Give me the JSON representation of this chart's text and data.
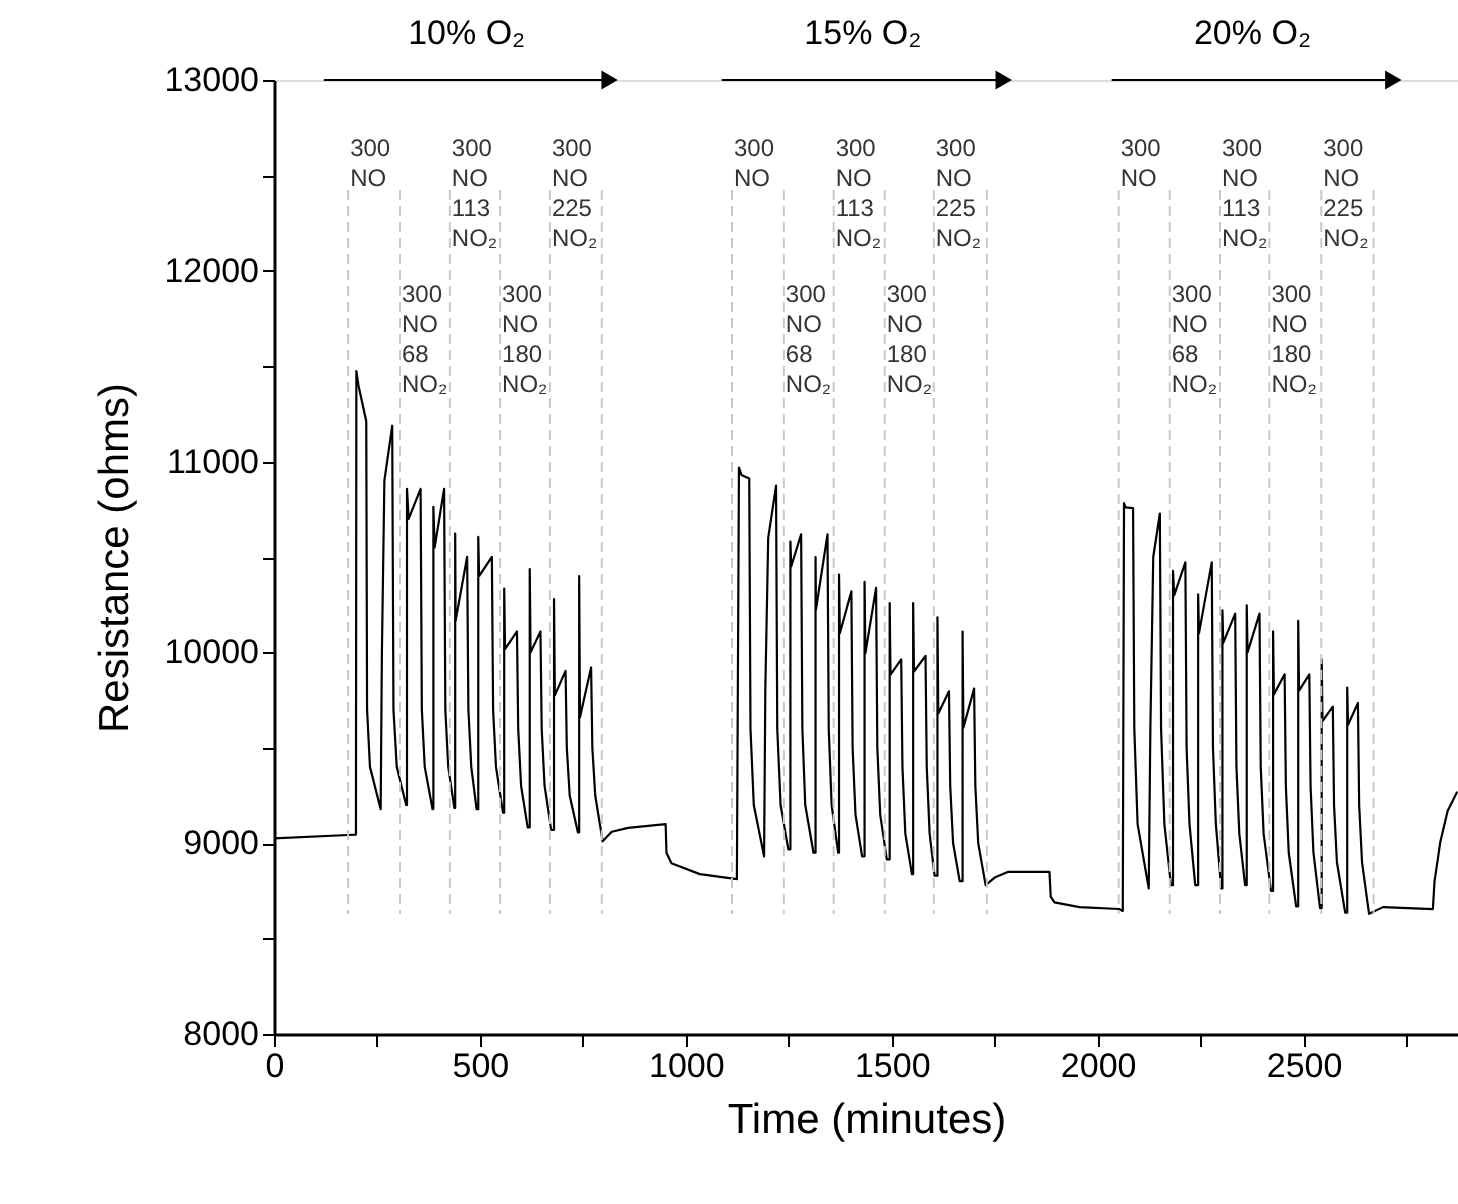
{
  "chart_data": {
    "type": "line",
    "xlabel": "Time (minutes)",
    "ylabel": "Resistance (ohms)",
    "xlim": [
      0,
      2875
    ],
    "ylim": [
      8000,
      13000
    ],
    "xticks": [
      0,
      {
        "value": 250,
        "label": null
      },
      500,
      {
        "value": 750,
        "label": null
      },
      1000,
      {
        "value": 1250,
        "label": null
      },
      1500,
      {
        "value": 1750,
        "label": null
      },
      2000,
      {
        "value": 2250,
        "label": null
      },
      2500,
      {
        "value": 2750,
        "label": null
      }
    ],
    "yticks": [
      8000,
      {
        "value": 8500,
        "label": null
      },
      9000,
      {
        "value": 9500,
        "label": null
      },
      10000,
      {
        "value": 10500,
        "label": null
      },
      11000,
      {
        "value": 11500,
        "label": null
      },
      12000,
      {
        "value": 12500,
        "label": null
      },
      13000
    ],
    "grid": false,
    "line_style": "solid",
    "series": [
      {
        "color": "#000000",
        "x": [
          0,
          180,
          199,
          200,
          205,
          224,
          226,
          233,
          259,
          262,
          268,
          287,
          290,
          298,
          321,
          323,
          323,
          327,
          356,
          359,
          366,
          385,
          387,
          387,
          390,
          413,
          416,
          423,
          438,
          440,
          440,
          441,
          469,
          472,
          479,
          492,
          496,
          496,
          498,
          529,
          532,
          539,
          556,
          559,
          559,
          561,
          590,
          593,
          600,
          616,
          621,
          621,
          623,
          647,
          650,
          657,
          673,
          680,
          680,
          682,
          708,
          711,
          718,
          738,
          741,
          741,
          743,
          770,
          773,
          780,
          798,
          820,
          860,
          951,
          953,
          965,
          1034,
          1124,
          1129,
          1135,
          1154,
          1157,
          1165,
          1190,
          1193,
          1200,
          1219,
          1222,
          1230,
          1249,
          1254,
          1254,
          1256,
          1280,
          1283,
          1290,
          1310,
          1315,
          1315,
          1316,
          1344,
          1347,
          1354,
          1370,
          1372,
          1372,
          1374,
          1402,
          1405,
          1412,
          1428,
          1434,
          1434,
          1436,
          1462,
          1465,
          1472,
          1488,
          1495,
          1495,
          1497,
          1523,
          1526,
          1533,
          1549,
          1552,
          1552,
          1554,
          1582,
          1585,
          1592,
          1604,
          1611,
          1611,
          1613,
          1639,
          1642,
          1649,
          1665,
          1672,
          1672,
          1674,
          1700,
          1703,
          1710,
          1728,
          1750,
          1783,
          1883,
          1886,
          1895,
          1956,
          2052,
          2061,
          2064,
          2068,
          2086,
          2089,
          2097,
          2124,
          2128,
          2135,
          2151,
          2154,
          2162,
          2178,
          2183,
          2183,
          2186,
          2213,
          2216,
          2223,
          2237,
          2244,
          2244,
          2246,
          2277,
          2280,
          2287,
          2300,
          2303,
          2303,
          2305,
          2334,
          2337,
          2344,
          2358,
          2362,
          2362,
          2364,
          2393,
          2396,
          2403,
          2421,
          2426,
          2426,
          2428,
          2454,
          2457,
          2464,
          2482,
          2487,
          2487,
          2489,
          2514,
          2517,
          2524,
          2540,
          2544,
          2544,
          2546,
          2571,
          2574,
          2581,
          2601,
          2606,
          2606,
          2608,
          2632,
          2635,
          2642,
          2659,
          2693,
          2814,
          2818,
          2832,
          2850,
          2873
        ],
        "values": [
          9025,
          9043,
          9045,
          11474,
          11400,
          11212,
          9700,
          9400,
          9178,
          10000,
          10900,
          11188,
          9700,
          9400,
          9200,
          9200,
          10857,
          10700,
          10857,
          9700,
          9400,
          9178,
          9180,
          10763,
          10550,
          10857,
          9700,
          9400,
          9185,
          9185,
          10623,
          10165,
          10501,
          9700,
          9400,
          9178,
          9178,
          10605,
          10400,
          10501,
          9700,
          9400,
          9160,
          9160,
          10334,
          10017,
          10110,
          9600,
          9300,
          9083,
          9083,
          10436,
          10000,
          10110,
          9600,
          9300,
          9070,
          9070,
          10280,
          9775,
          9903,
          9500,
          9250,
          9056,
          9056,
          10400,
          9660,
          9921,
          9500,
          9250,
          9010,
          9060,
          9080,
          9100,
          8950,
          8895,
          8838,
          8812,
          10968,
          10930,
          10912,
          9600,
          9200,
          8931,
          9800,
          10600,
          10874,
          9600,
          9200,
          8968,
          8968,
          10581,
          10450,
          10619,
          9600,
          9200,
          8950,
          8950,
          10500,
          10225,
          10619,
          9600,
          9200,
          8950,
          8950,
          10408,
          10100,
          10320,
          9500,
          9150,
          8931,
          8931,
          10370,
          9995,
          10338,
          9500,
          9150,
          8915,
          8915,
          10259,
          9884,
          9963,
          9400,
          9050,
          8838,
          8838,
          10259,
          9900,
          9982,
          9400,
          9050,
          8830,
          8830,
          10184,
          9680,
          9796,
          9300,
          9000,
          8801,
          8801,
          10109,
          9605,
          9810,
          9300,
          9000,
          8780,
          8820,
          8850,
          8850,
          8720,
          8690,
          8665,
          8655,
          8645,
          10782,
          10760,
          10756,
          9600,
          9100,
          8763,
          9600,
          10500,
          10728,
          9600,
          9100,
          8780,
          8780,
          10427,
          10300,
          10472,
          9500,
          9100,
          8780,
          8780,
          10304,
          10100,
          10472,
          9500,
          9100,
          8763,
          8763,
          10221,
          10050,
          10203,
          9400,
          9050,
          8780,
          8780,
          10247,
          10000,
          10203,
          9400,
          9050,
          8750,
          8750,
          10110,
          9780,
          9885,
          9300,
          8950,
          8669,
          8669,
          10165,
          9800,
          9885,
          9300,
          8950,
          8660,
          8660,
          9963,
          9640,
          9716,
          9200,
          8900,
          8636,
          8636,
          9815,
          9620,
          9735,
          9200,
          8900,
          8630,
          8665,
          8655,
          8800,
          9006,
          9170,
          9270
        ]
      },
      {
        "color": "#000000",
        "x": [
          121,
          815
        ],
        "values": [
          13000,
          13000
        ]
      },
      {
        "color": "#000000",
        "x": [
          1087,
          1772
        ],
        "values": [
          13000,
          13000
        ]
      },
      {
        "color": "#000000",
        "x": [
          2034,
          2718
        ],
        "values": [
          13000,
          13000
        ]
      }
    ],
    "annotations": [
      {
        "text": "10% O₂",
        "x": 468,
        "y": 13000
      },
      {
        "text": "15% O₂",
        "x": 1430,
        "y": 13000
      },
      {
        "text": "20% O₂",
        "x": 2376,
        "y": 13000
      }
    ],
    "ref_lines": [
      {
        "axis": "x",
        "value": 180,
        "label": "300\nNO",
        "color": "#c8c8c8",
        "line_style": "dashed"
      },
      {
        "axis": "x",
        "value": 306,
        "label": "300\nNO\n68\nNO₂",
        "color": "#c8c8c8",
        "line_style": "dashed"
      },
      {
        "axis": "x",
        "value": 427,
        "label": "300\nNO\n113\nNO₂",
        "color": "#c8c8c8",
        "line_style": "dashed"
      },
      {
        "axis": "x",
        "value": 549,
        "label": "300\nNO\n180\nNO₂",
        "color": "#c8c8c8",
        "line_style": "dashed"
      },
      {
        "axis": "x",
        "value": 670,
        "label": "300\nNO\n225\nNO₂",
        "color": "#c8c8c8",
        "line_style": "dashed"
      },
      {
        "axis": "x",
        "value": 796,
        "color": "#c8c8c8",
        "line_style": "dashed"
      },
      {
        "axis": "x",
        "value": 1112,
        "label": "300\nNO",
        "color": "#c8c8c8",
        "line_style": "dashed"
      },
      {
        "axis": "x",
        "value": 1238,
        "label": "300\nNO\n68\nNO₂",
        "color": "#c8c8c8",
        "line_style": "dashed"
      },
      {
        "axis": "x",
        "value": 1359,
        "label": "300\nNO\n113\nNO₂",
        "color": "#c8c8c8",
        "line_style": "dashed"
      },
      {
        "axis": "x",
        "value": 1483,
        "label": "300\nNO\n180\nNO₂",
        "color": "#c8c8c8",
        "line_style": "dashed"
      },
      {
        "axis": "x",
        "value": 1602,
        "label": "300\nNO\n225\nNO₂",
        "color": "#c8c8c8",
        "line_style": "dashed"
      },
      {
        "axis": "x",
        "value": 1731,
        "color": "#c8c8c8",
        "line_style": "dashed"
      },
      {
        "axis": "x",
        "value": 2051,
        "label": "300\nNO",
        "color": "#c8c8c8",
        "line_style": "dashed"
      },
      {
        "axis": "x",
        "value": 2175,
        "label": "300\nNO\n68\nNO₂",
        "color": "#c8c8c8",
        "line_style": "dashed"
      },
      {
        "axis": "x",
        "value": 2297,
        "label": "300\nNO\n113\nNO₂",
        "color": "#c8c8c8",
        "line_style": "dashed"
      },
      {
        "axis": "x",
        "value": 2417,
        "label": "300\nNO\n180\nNO₂",
        "color": "#c8c8c8",
        "line_style": "dashed"
      },
      {
        "axis": "x",
        "value": 2543,
        "label": "300\nNO\n225\nNO₂",
        "color": "#c8c8c8",
        "line_style": "dashed"
      },
      {
        "axis": "x",
        "value": 2670,
        "color": "#c8c8c8",
        "line_style": "dashed"
      }
    ]
  }
}
